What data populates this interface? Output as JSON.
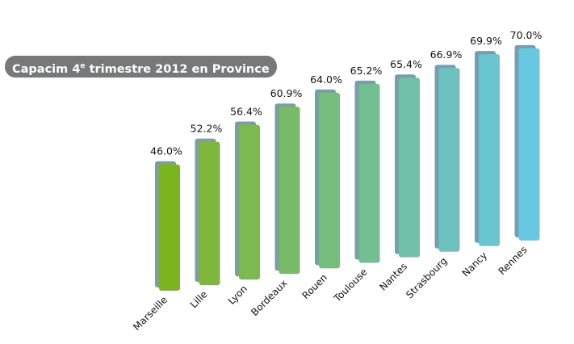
{
  "chart_data": {
    "type": "bar",
    "title": "Capacim 4e trimestre 2012 en Province",
    "title_parts": {
      "pre": "Capacim 4",
      "sup": "e",
      "post": " trimestre 2012 en Province"
    },
    "categories": [
      "Marseille",
      "Lille",
      "Lyon",
      "Bordeaux",
      "Rouen",
      "Toulouse",
      "Nantes",
      "Strasbourg",
      "Nancy",
      "Rennes"
    ],
    "values": [
      46.0,
      52.2,
      56.4,
      60.9,
      64.0,
      65.2,
      65.4,
      66.9,
      69.9,
      70.0
    ],
    "data_labels": [
      "46.0%",
      "52.2%",
      "56.4%",
      "60.9%",
      "64.0%",
      "65.2%",
      "65.4%",
      "66.9%",
      "69.9%",
      "70.0%"
    ],
    "colors": [
      "#7ab51d",
      "#7db83a",
      "#7cba50",
      "#77bb66",
      "#74bd7d",
      "#72bf92",
      "#70c1a8",
      "#6cc3bd",
      "#69c6d0",
      "#67c9e0"
    ],
    "side_color": "#7f9aab",
    "grid": false,
    "legend": "none",
    "xlabel": "",
    "ylabel": ""
  }
}
